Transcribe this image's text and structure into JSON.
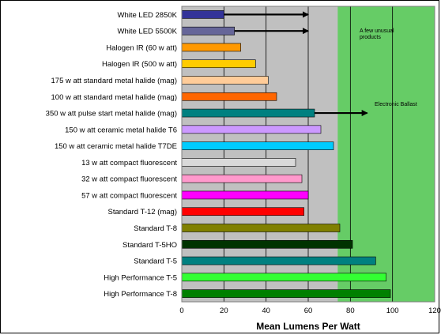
{
  "chart_data": {
    "type": "bar",
    "orientation": "horizontal",
    "title": "",
    "xlabel": "Mean Lumens Per Watt",
    "ylabel": "",
    "xlim": [
      0,
      120
    ],
    "x_ticks": [
      0,
      20,
      40,
      60,
      80,
      100,
      120
    ],
    "grid": "vertical",
    "categories": [
      "White LED 2850K",
      "White LED 5500K",
      "Halogen IR (60 w att)",
      "Halogen IR (500 w att)",
      "175 w att standard metal halide (mag)",
      "100 w att standard metal halide (mag)",
      "350 w att pulse start metal halide (mag)",
      "150 w att ceramic metal halide T6",
      "150 w att ceramic metal halide T7DE",
      "13 w att compact fluorescent",
      "32 w att compact fluorescent",
      "57 w att compact fluorescent",
      "Standard T-12 (mag)",
      "Standard T-8",
      "Standard T-5HO",
      "Standard T-5",
      "High Performance T-5",
      "High Performance T-8"
    ],
    "values": [
      20,
      25,
      28,
      35,
      41,
      45,
      63,
      66,
      72,
      54,
      57,
      60,
      58,
      75,
      81,
      92,
      97,
      99
    ],
    "colors": [
      "#333399",
      "#666699",
      "#ff9900",
      "#ffcc00",
      "#ffcc99",
      "#ff6600",
      "#008080",
      "#cc99ff",
      "#00ccff",
      "#d9d9d9",
      "#ff99cc",
      "#ff00ff",
      "#ff0000",
      "#808000",
      "#003300",
      "#008080",
      "#33ff33",
      "#008000"
    ],
    "shaded_region": {
      "from": 74,
      "to": 120,
      "color": "#66cc66"
    },
    "annotations": [
      {
        "text": "A few unusual products",
        "arrows_from_categories": [
          "White LED 2850K",
          "White LED 5500K"
        ],
        "arrow_to_x": 60
      },
      {
        "text": "Electronic Ballast",
        "arrows_from_categories": [
          "350 w att pulse start metal halide (mag)"
        ],
        "arrow_to_x": 88
      }
    ]
  }
}
